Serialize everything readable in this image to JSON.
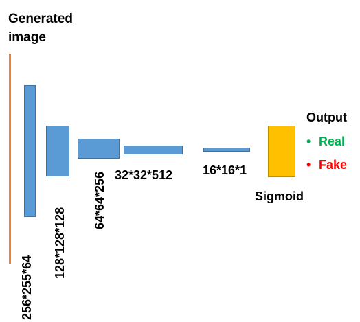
{
  "diagram": {
    "title": "Generated image",
    "title_lines": [
      "Generated",
      "image"
    ],
    "layers": [
      "256*255*64",
      "128*128*128",
      "64*64*256",
      "32*32*512",
      "16*16*1"
    ],
    "activation": "Sigmoid",
    "output": {
      "title": "Output",
      "options": [
        {
          "label": "Real",
          "color": "#00b050"
        },
        {
          "label": "Fake",
          "color": "#ff0000"
        }
      ]
    },
    "colors": {
      "input_bar": "#ed7d31",
      "layer_block": "#5b9bd5",
      "sigmoid_block": "#ffc000"
    }
  }
}
